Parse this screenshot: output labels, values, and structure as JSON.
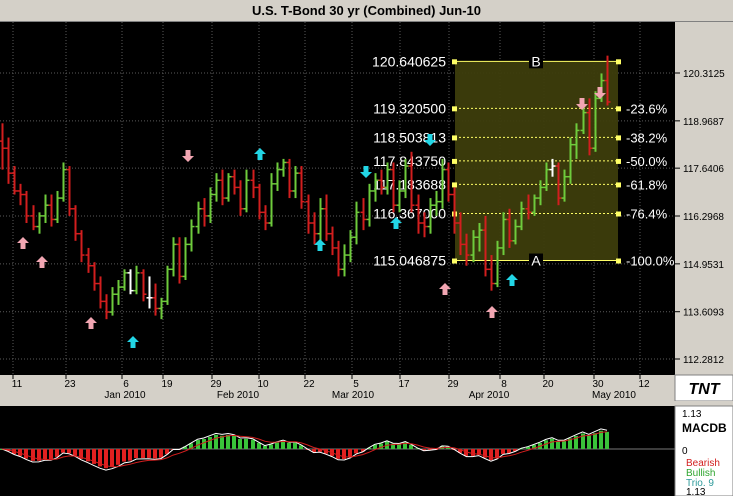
{
  "window": {
    "title": "U.S. T-Bond 30 yr (Combined) Jun-10"
  },
  "colors": {
    "up": "#6ecb3c",
    "down": "#d21e1e",
    "neutral": "#ffffff",
    "up_arrow": "#22d6e6",
    "down_arrow": "#f2a6b2",
    "fib_fill": "#3d3d0c",
    "fib_line": "#ffff66"
  },
  "chart_data": {
    "type": "ohlc",
    "price_ticks": [
      "120.3125",
      "118.9687",
      "117.6406",
      "116.2968",
      "114.9531",
      "113.6093",
      "112.2812"
    ],
    "date_ticks": [
      "11",
      "23",
      "6",
      "19",
      "29",
      "10",
      "22",
      "5",
      "17",
      "29",
      "8",
      "20",
      "30",
      "12"
    ],
    "month_labels": [
      "Jan 2010",
      "Feb 2010",
      "Mar 2010",
      "Apr 2010",
      "May 2010"
    ],
    "fib_levels": [
      {
        "price": "120.640625",
        "marker": "B",
        "pct": ""
      },
      {
        "price": "119.320500",
        "marker": "",
        "pct": "-23.6%"
      },
      {
        "price": "118.503813",
        "marker": "",
        "pct": "-38.2%"
      },
      {
        "price": "117.843750",
        "marker": "",
        "pct": "-50.0%"
      },
      {
        "price": "117.183688",
        "marker": "",
        "pct": "-61.8%"
      },
      {
        "price": "116.367000",
        "marker": "",
        "pct": "-76.4%"
      },
      {
        "price": "115.046875",
        "marker": "A",
        "pct": "-100.0%"
      }
    ],
    "bars": [
      [
        118.4,
        118.9,
        117.6,
        118.2
      ],
      [
        118.2,
        118.5,
        117.2,
        117.5
      ],
      [
        117.5,
        117.7,
        116.9,
        117.0
      ],
      [
        117.0,
        117.2,
        116.6,
        116.9
      ],
      [
        116.9,
        117.0,
        116.1,
        116.3
      ],
      [
        116.3,
        116.6,
        115.9,
        116.0
      ],
      [
        116.0,
        116.4,
        115.8,
        116.3
      ],
      [
        116.3,
        116.9,
        116.1,
        116.6
      ],
      [
        116.6,
        116.9,
        116.0,
        116.2
      ],
      [
        116.2,
        117.0,
        116.1,
        116.8
      ],
      [
        116.8,
        117.8,
        116.7,
        117.6
      ],
      [
        117.6,
        117.7,
        116.3,
        116.5
      ],
      [
        116.5,
        116.6,
        115.6,
        115.8
      ],
      [
        115.8,
        115.9,
        115.0,
        115.2
      ],
      [
        115.2,
        115.4,
        114.7,
        114.9
      ],
      [
        114.9,
        115.0,
        114.2,
        114.4
      ],
      [
        114.4,
        114.6,
        113.7,
        113.9
      ],
      [
        113.9,
        114.1,
        113.4,
        113.6
      ],
      [
        113.6,
        114.3,
        113.5,
        114.1
      ],
      [
        114.1,
        114.5,
        113.8,
        114.3
      ],
      [
        114.3,
        114.8,
        114.2,
        114.7
      ],
      [
        114.7,
        114.8,
        114.1,
        114.2
      ],
      [
        114.2,
        114.9,
        114.1,
        114.7
      ],
      [
        114.7,
        114.8,
        113.9,
        114.1
      ],
      [
        114.0,
        114.6,
        113.7,
        114.0
      ],
      [
        114.0,
        114.4,
        113.5,
        113.7
      ],
      [
        113.7,
        114.0,
        113.4,
        113.9
      ],
      [
        113.9,
        114.9,
        113.8,
        114.8
      ],
      [
        114.8,
        115.7,
        114.6,
        115.5
      ],
      [
        115.5,
        115.7,
        114.4,
        114.6
      ],
      [
        114.6,
        115.7,
        114.5,
        115.5
      ],
      [
        115.5,
        116.2,
        115.3,
        116.0
      ],
      [
        116.0,
        116.7,
        115.8,
        116.5
      ],
      [
        116.5,
        116.8,
        116.0,
        116.3
      ],
      [
        116.3,
        117.1,
        116.1,
        116.9
      ],
      [
        116.9,
        117.5,
        116.7,
        117.3
      ],
      [
        117.3,
        117.6,
        116.6,
        116.8
      ],
      [
        116.8,
        117.5,
        116.7,
        117.4
      ],
      [
        117.4,
        117.6,
        116.9,
        117.1
      ],
      [
        117.1,
        117.3,
        116.3,
        116.5
      ],
      [
        116.5,
        117.6,
        116.4,
        117.3
      ],
      [
        117.3,
        117.6,
        116.8,
        117.1
      ],
      [
        117.1,
        117.2,
        116.2,
        116.4
      ],
      [
        116.4,
        116.6,
        115.9,
        116.1
      ],
      [
        116.1,
        117.5,
        116.0,
        117.2
      ],
      [
        117.2,
        117.8,
        117.0,
        117.6
      ],
      [
        117.6,
        117.9,
        117.4,
        117.8
      ],
      [
        117.8,
        117.9,
        116.8,
        117.0
      ],
      [
        117.0,
        117.7,
        116.8,
        117.5
      ],
      [
        117.5,
        117.7,
        116.5,
        116.7
      ],
      [
        116.7,
        116.9,
        115.8,
        116.1
      ],
      [
        116.1,
        116.4,
        115.5,
        115.8
      ],
      [
        115.8,
        116.8,
        115.6,
        116.5
      ],
      [
        116.5,
        116.9,
        115.6,
        115.8
      ],
      [
        115.8,
        116.0,
        115.2,
        115.4
      ],
      [
        115.4,
        115.6,
        114.6,
        114.8
      ],
      [
        114.8,
        115.5,
        114.6,
        115.2
      ],
      [
        115.2,
        115.9,
        115.0,
        115.7
      ],
      [
        115.7,
        116.7,
        115.5,
        116.4
      ],
      [
        116.4,
        116.8,
        115.9,
        116.2
      ],
      [
        116.2,
        117.2,
        116.0,
        117.0
      ],
      [
        117.0,
        117.5,
        116.7,
        117.3
      ],
      [
        117.3,
        117.6,
        116.9,
        117.1
      ],
      [
        117.1,
        117.8,
        116.9,
        117.6
      ],
      [
        117.6,
        117.8,
        116.4,
        116.6
      ],
      [
        116.6,
        117.3,
        116.4,
        117.0
      ],
      [
        117.0,
        117.9,
        116.8,
        117.7
      ],
      [
        117.7,
        118.1,
        116.4,
        116.6
      ],
      [
        116.6,
        116.9,
        115.8,
        116.1
      ],
      [
        116.1,
        116.4,
        115.7,
        116.0
      ],
      [
        116.0,
        116.8,
        115.8,
        116.6
      ],
      [
        116.6,
        117.0,
        116.3,
        116.7
      ],
      [
        116.7,
        117.9,
        116.5,
        117.6
      ],
      [
        117.6,
        117.8,
        116.7,
        116.9
      ],
      [
        116.9,
        117.1,
        115.8,
        116.1
      ],
      [
        116.1,
        116.4,
        115.2,
        115.5
      ],
      [
        115.5,
        115.8,
        114.9,
        115.2
      ],
      [
        115.2,
        115.9,
        115.0,
        115.7
      ],
      [
        115.7,
        116.1,
        115.3,
        115.9
      ],
      [
        115.9,
        116.3,
        114.6,
        114.8
      ],
      [
        114.8,
        115.2,
        114.2,
        114.4
      ],
      [
        114.4,
        115.6,
        114.3,
        115.4
      ],
      [
        115.4,
        116.4,
        115.2,
        116.2
      ],
      [
        116.2,
        116.5,
        115.4,
        115.6
      ],
      [
        115.6,
        116.2,
        115.5,
        116.0
      ],
      [
        116.0,
        116.7,
        115.9,
        116.5
      ],
      [
        116.5,
        116.9,
        116.2,
        116.4
      ],
      [
        116.4,
        116.9,
        116.3,
        116.8
      ],
      [
        116.8,
        117.3,
        116.6,
        117.1
      ],
      [
        117.1,
        117.8,
        117.0,
        117.6
      ],
      [
        117.6,
        117.9,
        117.4,
        117.7
      ],
      [
        117.7,
        117.8,
        116.6,
        116.8
      ],
      [
        116.8,
        117.6,
        116.7,
        117.4
      ],
      [
        117.4,
        118.5,
        117.2,
        118.3
      ],
      [
        118.3,
        118.9,
        117.9,
        118.7
      ],
      [
        118.7,
        119.4,
        118.6,
        119.2
      ],
      [
        119.2,
        119.6,
        118.0,
        118.2
      ],
      [
        118.2,
        119.8,
        118.1,
        119.6
      ],
      [
        119.6,
        120.3,
        119.5,
        120.1
      ],
      [
        120.1,
        120.8,
        119.4,
        119.5
      ]
    ],
    "indicator": {
      "name": "MACDB",
      "value_label": "1.13",
      "signal_value": "1.13",
      "scale_top": "1.13",
      "scale_zero": "0",
      "legend_bearish": "Bearish",
      "legend_bullish": "Bullish",
      "legend_trio": "Trio. 9"
    }
  },
  "logo": {
    "text": "TNT"
  }
}
